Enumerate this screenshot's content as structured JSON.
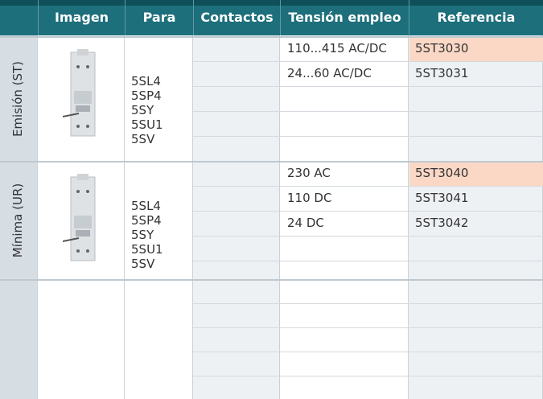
{
  "header": [
    "Imagen",
    "Para",
    "Contactos",
    "Tensión empleo",
    "Referencia"
  ],
  "groups": [
    {
      "label": "Emisión (ST)",
      "para": [
        "5SL4",
        "5SP4",
        "5SY",
        "5SU1",
        "5SV"
      ],
      "rows": [
        {
          "tension": "110...415 AC/DC",
          "ref": "5ST3030",
          "highlight": true
        },
        {
          "tension": "24...60 AC/DC",
          "ref": "5ST3031",
          "highlight": false
        }
      ]
    },
    {
      "label": "Mínima (UR)",
      "para": [
        "5SL4",
        "5SP4",
        "5SY",
        "5SU1",
        "5SV"
      ],
      "rows": [
        {
          "tension": "230 AC",
          "ref": "5ST3040",
          "highlight": true
        },
        {
          "tension": "110 DC",
          "ref": "5ST3041",
          "highlight": false
        },
        {
          "tension": "24 DC",
          "ref": "5ST3042",
          "highlight": false
        }
      ]
    }
  ]
}
